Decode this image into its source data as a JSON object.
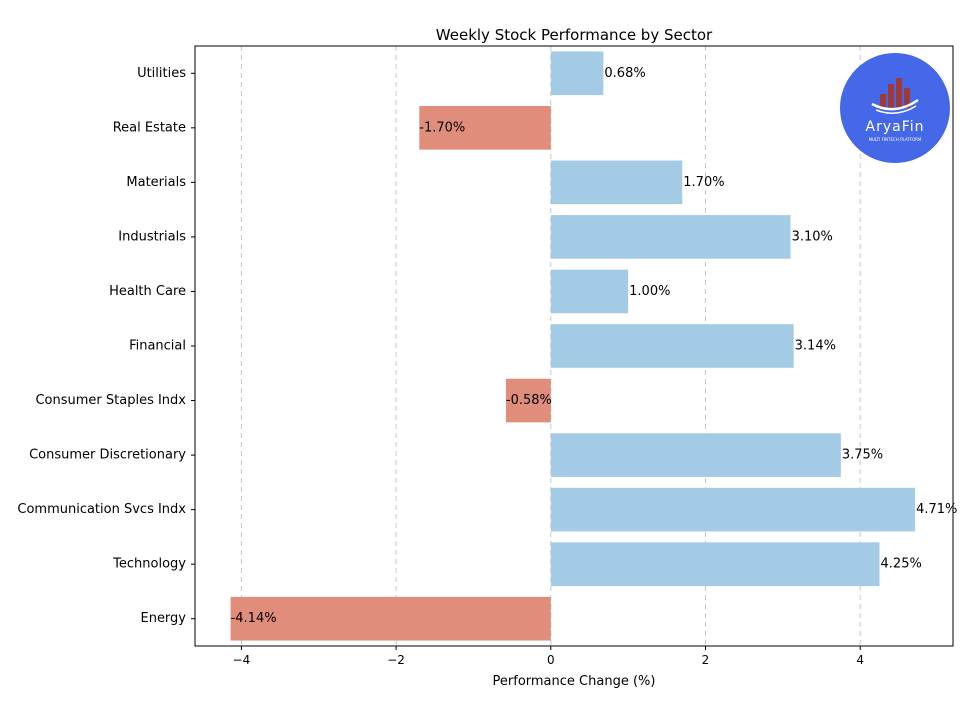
{
  "chart_data": {
    "type": "bar",
    "orientation": "horizontal",
    "title": "Weekly Stock Performance by Sector",
    "xlabel": "Performance Change (%)",
    "ylabel": "",
    "xlim": [
      -4.6,
      5.2
    ],
    "xticks": [
      -4,
      -2,
      0,
      2,
      4
    ],
    "xtick_labels": [
      "−4",
      "−2",
      "0",
      "2",
      "4"
    ],
    "grid": "vertical dashed",
    "categories": [
      "Utilities",
      "Real Estate",
      "Materials",
      "Industrials",
      "Health Care",
      "Financial",
      "Consumer Staples Indx",
      "Consumer Discretionary",
      "Communication Svcs Indx",
      "Technology",
      "Energy"
    ],
    "values": [
      0.68,
      -1.7,
      1.7,
      3.1,
      1.0,
      3.14,
      -0.58,
      3.75,
      4.71,
      4.25,
      -4.14
    ],
    "value_labels": [
      "0.68%",
      "-1.70%",
      "1.70%",
      "3.10%",
      "1.00%",
      "3.14%",
      "-0.58%",
      "3.75%",
      "4.71%",
      "4.25%",
      "-4.14%"
    ],
    "colors": {
      "positive": "#a3cbe5",
      "negative": "#e08d7b"
    }
  },
  "logo": {
    "name": "AryaFin",
    "tagline": "MULTI FINTECH PLATFORM",
    "background": "#4468e8",
    "bars_color": "#9e3a3a"
  }
}
